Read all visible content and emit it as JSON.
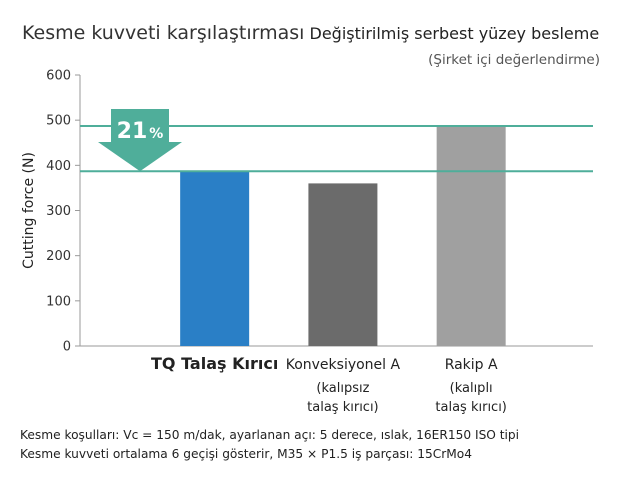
{
  "header": {
    "title": "Kesme kuvveti karşılaştırması",
    "subtitle": "Değiştirilmiş serbest yüzey besleme",
    "note": "(Şirket içi değerlendirme)"
  },
  "chart_data": {
    "type": "bar",
    "ylabel": "Cutting force (N)",
    "ylim": [
      0,
      600
    ],
    "yticks": [
      0,
      100,
      200,
      300,
      400,
      500,
      600
    ],
    "grid": false,
    "categories": [
      {
        "name": "TQ Talaş Kırıcı",
        "sub": [],
        "value": 387,
        "color": "#2a7fc6"
      },
      {
        "name": "Konveksiyonel A",
        "sub": [
          "(kalıpsız",
          "talaş kırıcı)"
        ],
        "value": 360,
        "color": "#6b6b6b"
      },
      {
        "name": "Rakip A",
        "sub": [
          "(kalıplı",
          "talaş kırıcı)"
        ],
        "value": 488,
        "color": "#a0a0a0"
      }
    ],
    "reference_lines": [
      {
        "value": 487,
        "color": "#4fae9a"
      },
      {
        "value": 387,
        "color": "#4fae9a"
      }
    ],
    "annotation": {
      "value": "21",
      "unit": "%",
      "color": "#4fae9a"
    }
  },
  "footnotes": [
    "Kesme koşulları: Vc = 150 m/dak, ayarlanan açı: 5 derece, ıslak, 16ER150 ISO tipi",
    "Kesme kuvveti ortalama 6 geçişi gösterir, M35 × P1.5 iş parçası: 15CrMo4"
  ]
}
